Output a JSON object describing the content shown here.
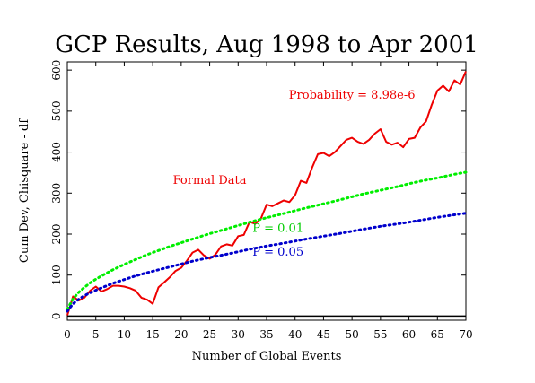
{
  "chart_data": {
    "type": "line",
    "title": "GCP Results, Aug 1998 to Apr 2001",
    "xlabel": "Number of Global Events",
    "ylabel": "Cum Dev, Chisquare - df",
    "xlim": [
      0,
      70
    ],
    "ylim": [
      -10,
      620
    ],
    "xticks": [
      0,
      5,
      10,
      15,
      20,
      25,
      30,
      35,
      40,
      45,
      50,
      55,
      60,
      65,
      70
    ],
    "yticks": [
      0,
      100,
      200,
      300,
      400,
      500,
      600
    ],
    "grid": false,
    "zero_line": true,
    "annotations": [
      {
        "text": "Probability = 8.98e-6",
        "x": 50,
        "y": 530,
        "color": "#ee0000"
      },
      {
        "text": "Formal Data",
        "x": 25,
        "y": 322,
        "color": "#ee0000"
      },
      {
        "text": "P = 0.01",
        "x": 37,
        "y": 206,
        "color": "#00cc00"
      },
      {
        "text": "P = 0.05",
        "x": 37,
        "y": 147,
        "color": "#0000cc"
      }
    ],
    "series": [
      {
        "name": "Formal Data",
        "color": "#ee0000",
        "style": "solid",
        "x": [
          0,
          1,
          2,
          3,
          4,
          5,
          6,
          7,
          8,
          9,
          10,
          11,
          12,
          13,
          14,
          15,
          16,
          17,
          18,
          19,
          20,
          21,
          22,
          23,
          24,
          25,
          26,
          27,
          28,
          29,
          30,
          31,
          32,
          33,
          34,
          35,
          36,
          37,
          38,
          39,
          40,
          41,
          42,
          43,
          44,
          45,
          46,
          47,
          48,
          49,
          50,
          51,
          52,
          53,
          54,
          55,
          56,
          57,
          58,
          59,
          60,
          61,
          62,
          63,
          64,
          65,
          66,
          67,
          68,
          69,
          70
        ],
        "y": [
          2,
          48,
          38,
          45,
          62,
          72,
          60,
          66,
          74,
          74,
          72,
          68,
          62,
          45,
          40,
          30,
          70,
          82,
          95,
          110,
          118,
          135,
          155,
          162,
          148,
          140,
          150,
          170,
          175,
          172,
          195,
          198,
          230,
          225,
          238,
          272,
          268,
          275,
          282,
          278,
          295,
          330,
          325,
          362,
          395,
          398,
          390,
          400,
          415,
          430,
          435,
          425,
          420,
          430,
          445,
          456,
          425,
          418,
          423,
          412,
          432,
          435,
          460,
          475,
          515,
          550,
          562,
          548,
          575,
          565,
          597
        ]
      },
      {
        "name": "P = 0.01",
        "color": "#00ee00",
        "style": "dotted",
        "x": [
          0,
          1,
          2,
          3,
          4,
          5,
          6,
          8,
          10,
          12,
          14,
          16,
          18,
          20,
          22,
          25,
          28,
          30,
          32,
          35,
          38,
          40,
          42,
          45,
          48,
          50,
          52,
          55,
          58,
          60,
          62,
          65,
          68,
          70
        ],
        "y": [
          17,
          42,
          58,
          70,
          81,
          90,
          98,
          113,
          126,
          138,
          150,
          160,
          170,
          179,
          188,
          201,
          213,
          221,
          229,
          240,
          250,
          257,
          264,
          274,
          284,
          291,
          298,
          307,
          316,
          323,
          329,
          337,
          346,
          351
        ]
      },
      {
        "name": "P = 0.05",
        "color": "#0000cc",
        "style": "dotted",
        "x": [
          0,
          1,
          2,
          3,
          4,
          5,
          6,
          8,
          10,
          12,
          14,
          16,
          18,
          20,
          22,
          25,
          28,
          30,
          32,
          35,
          38,
          40,
          42,
          45,
          48,
          50,
          52,
          55,
          58,
          60,
          62,
          65,
          68,
          70
        ],
        "y": [
          12,
          30,
          41,
          50,
          57,
          63,
          69,
          80,
          89,
          98,
          106,
          113,
          120,
          127,
          134,
          143,
          151,
          157,
          163,
          171,
          178,
          183,
          188,
          195,
          202,
          207,
          212,
          219,
          225,
          229,
          234,
          241,
          247,
          251
        ]
      }
    ]
  }
}
